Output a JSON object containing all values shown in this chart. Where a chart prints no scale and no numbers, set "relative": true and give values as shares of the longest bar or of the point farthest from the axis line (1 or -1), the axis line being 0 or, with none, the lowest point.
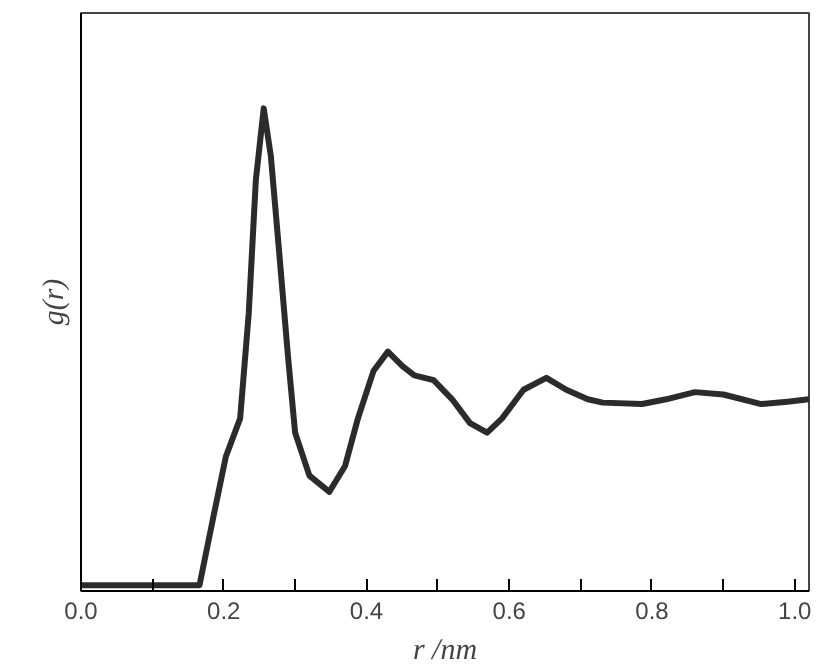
{
  "chart_data": {
    "type": "line",
    "relative": true,
    "xlabel": "r /nm",
    "ylabel": "g(r)",
    "x": [
      0,
      0.05,
      0.1,
      0.15,
      0.166,
      0.185,
      0.203,
      0.223,
      0.235,
      0.245,
      0.256,
      0.266,
      0.277,
      0.29,
      0.3,
      0.32,
      0.348,
      0.37,
      0.388,
      0.41,
      0.43,
      0.45,
      0.467,
      0.494,
      0.52,
      0.545,
      0.569,
      0.59,
      0.62,
      0.652,
      0.68,
      0.71,
      0.731,
      0.786,
      0.82,
      0.86,
      0.9,
      0.953,
      0.99,
      1.02
    ],
    "values": [
      0,
      0,
      0,
      0,
      0,
      0.14,
      0.27,
      0.35,
      0.57,
      0.85,
      1.0,
      0.9,
      0.71,
      0.48,
      0.32,
      0.23,
      0.196,
      0.25,
      0.35,
      0.45,
      0.49,
      0.46,
      0.44,
      0.43,
      0.39,
      0.34,
      0.32,
      0.35,
      0.41,
      0.435,
      0.41,
      0.39,
      0.383,
      0.38,
      0.39,
      0.405,
      0.4,
      0.38,
      0.385,
      0.39
    ],
    "color": "#2b2b2b",
    "xlim": [
      0,
      1.02
    ],
    "xticks": [
      {
        "value": 0,
        "label": "0.0"
      },
      {
        "value": 0.1,
        "label": null
      },
      {
        "value": 0.2,
        "label": "0.2"
      },
      {
        "value": 0.3,
        "label": null
      },
      {
        "value": 0.4,
        "label": "0.4"
      },
      {
        "value": 0.5,
        "label": null
      },
      {
        "value": 0.6,
        "label": "0.6"
      },
      {
        "value": 0.7,
        "label": null
      },
      {
        "value": 0.8,
        "label": "0.8"
      },
      {
        "value": 0.9,
        "label": null
      },
      {
        "value": 1.0,
        "label": "1.0"
      }
    ],
    "grid": false,
    "marker": "none",
    "line_style": "solid"
  }
}
